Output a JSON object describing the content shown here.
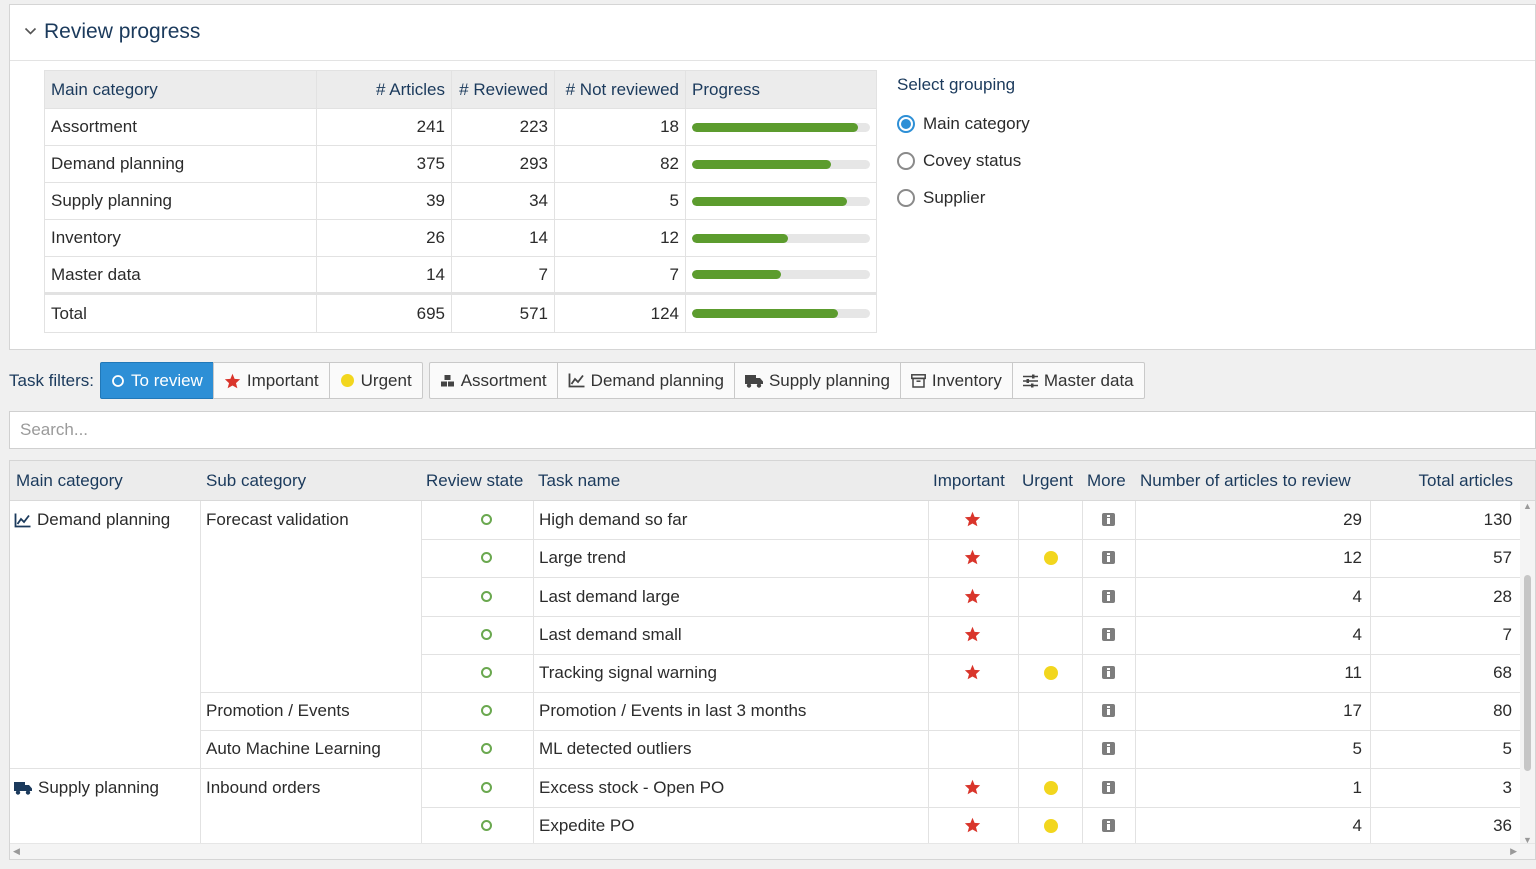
{
  "review_progress": {
    "title": "Review progress",
    "columns": {
      "category": "Main category",
      "articles": "# Articles",
      "reviewed": "# Reviewed",
      "not_reviewed": "# Not reviewed",
      "progress": "Progress"
    },
    "rows": [
      {
        "category": "Assortment",
        "articles": "241",
        "reviewed": "223",
        "not_reviewed": "18",
        "progress": 0.93
      },
      {
        "category": "Demand planning",
        "articles": "375",
        "reviewed": "293",
        "not_reviewed": "82",
        "progress": 0.78
      },
      {
        "category": "Supply planning",
        "articles": "39",
        "reviewed": "34",
        "not_reviewed": "5",
        "progress": 0.87
      },
      {
        "category": "Inventory",
        "articles": "26",
        "reviewed": "14",
        "not_reviewed": "12",
        "progress": 0.54
      },
      {
        "category": "Master data",
        "articles": "14",
        "reviewed": "7",
        "not_reviewed": "7",
        "progress": 0.5
      }
    ],
    "total": {
      "category": "Total",
      "articles": "695",
      "reviewed": "571",
      "not_reviewed": "124",
      "progress": 0.82
    },
    "progress_color": "#5c9c2e"
  },
  "grouping": {
    "title": "Select grouping",
    "options": [
      "Main category",
      "Covey status",
      "Supplier"
    ],
    "selected": "Main category"
  },
  "filters": {
    "label": "Task filters:",
    "group1": [
      {
        "label": "To review",
        "icon": "circle-outline-icon",
        "active": true
      },
      {
        "label": "Important",
        "icon": "star-icon",
        "active": false
      },
      {
        "label": "Urgent",
        "icon": "yellow-dot-icon",
        "active": false
      }
    ],
    "group2": [
      {
        "label": "Assortment",
        "icon": "cubes-icon"
      },
      {
        "label": "Demand planning",
        "icon": "line-chart-icon"
      },
      {
        "label": "Supply planning",
        "icon": "truck-icon"
      },
      {
        "label": "Inventory",
        "icon": "archive-box-icon"
      },
      {
        "label": "Master data",
        "icon": "sliders-icon"
      }
    ],
    "active_color": "#2d8fd6"
  },
  "search": {
    "placeholder": "Search..."
  },
  "tasks": {
    "columns": {
      "main": "Main category",
      "sub": "Sub category",
      "state": "Review state",
      "task": "Task name",
      "important": "Important",
      "urgent": "Urgent",
      "more": "More",
      "to_review": "Number of articles to review",
      "total": "Total articles"
    },
    "groups": [
      {
        "main": "Demand planning",
        "icon": "line-chart-icon",
        "sub": "Forecast validation"
      },
      {
        "main": "",
        "icon": "",
        "sub": "Promotion / Events"
      },
      {
        "main": "",
        "icon": "",
        "sub": "Auto Machine Learning"
      },
      {
        "main": "Supply planning",
        "icon": "truck-icon",
        "sub": "Inbound orders"
      }
    ],
    "rows": [
      {
        "task": "High demand so far",
        "important": true,
        "urgent": false,
        "to_review": "29",
        "total": "130"
      },
      {
        "task": "Large trend",
        "important": true,
        "urgent": true,
        "to_review": "12",
        "total": "57"
      },
      {
        "task": "Last demand large",
        "important": true,
        "urgent": false,
        "to_review": "4",
        "total": "28"
      },
      {
        "task": "Last demand small",
        "important": true,
        "urgent": false,
        "to_review": "4",
        "total": "7"
      },
      {
        "task": "Tracking signal warning",
        "important": true,
        "urgent": true,
        "to_review": "11",
        "total": "68"
      },
      {
        "task": "Promotion / Events in last 3 months",
        "important": false,
        "urgent": false,
        "to_review": "17",
        "total": "80"
      },
      {
        "task": "ML detected outliers",
        "important": false,
        "urgent": false,
        "to_review": "5",
        "total": "5"
      },
      {
        "task": "Excess stock - Open PO",
        "important": true,
        "urgent": true,
        "to_review": "1",
        "total": "3"
      },
      {
        "task": "Expedite PO",
        "important": true,
        "urgent": true,
        "to_review": "4",
        "total": "36"
      }
    ]
  }
}
